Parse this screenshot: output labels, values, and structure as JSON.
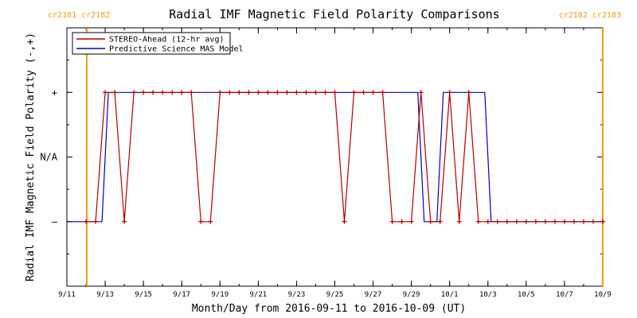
{
  "chart_data": {
    "type": "line",
    "title": "Radial IMF Magnetic Field Polarity Comparisons",
    "xlabel": "Month/Day from 2016-09-11 to 2016-10-09 (UT)",
    "ylabel": "Radial IMF Magnetic Field Polarity (-,+)",
    "xlim": [
      "2016-09-11",
      "2016-10-09"
    ],
    "x_ticks": [
      "9/11",
      "9/13",
      "9/15",
      "9/17",
      "9/19",
      "9/21",
      "9/23",
      "9/25",
      "9/27",
      "9/29",
      "10/1",
      "10/3",
      "10/5",
      "10/7",
      "10/9"
    ],
    "y_ticks": [
      {
        "value": 1,
        "label": "+"
      },
      {
        "value": 0,
        "label": "N/A"
      },
      {
        "value": -1,
        "label": "–"
      }
    ],
    "ylim": [
      -2,
      2
    ],
    "legend_position": "top-left",
    "carrington_markers": [
      {
        "date": "2016-09-12T01:00",
        "label": "cr2181 cr2182"
      },
      {
        "date": "2016-10-09T00:00",
        "label": "cr2182 cr2183"
      }
    ],
    "series": [
      {
        "name": "STEREO-Ahead (12-hr avg)",
        "color": "#b00000",
        "markers": true,
        "x": [
          "2016-09-12T00:00",
          "2016-09-12T12:00",
          "2016-09-13T00:00",
          "2016-09-13T12:00",
          "2016-09-14T00:00",
          "2016-09-14T12:00",
          "2016-09-15T00:00",
          "2016-09-15T12:00",
          "2016-09-16T00:00",
          "2016-09-16T12:00",
          "2016-09-17T00:00",
          "2016-09-17T12:00",
          "2016-09-18T00:00",
          "2016-09-18T12:00",
          "2016-09-19T00:00",
          "2016-09-19T12:00",
          "2016-09-20T00:00",
          "2016-09-20T12:00",
          "2016-09-21T00:00",
          "2016-09-21T12:00",
          "2016-09-22T00:00",
          "2016-09-22T12:00",
          "2016-09-23T00:00",
          "2016-09-23T12:00",
          "2016-09-24T00:00",
          "2016-09-24T12:00",
          "2016-09-25T00:00",
          "2016-09-25T12:00",
          "2016-09-26T00:00",
          "2016-09-26T12:00",
          "2016-09-27T00:00",
          "2016-09-27T12:00",
          "2016-09-28T00:00",
          "2016-09-28T12:00",
          "2016-09-29T00:00",
          "2016-09-29T12:00",
          "2016-09-30T00:00",
          "2016-09-30T12:00",
          "2016-10-01T00:00",
          "2016-10-01T12:00",
          "2016-10-02T00:00",
          "2016-10-02T12:00",
          "2016-10-03T00:00",
          "2016-10-03T12:00",
          "2016-10-04T00:00",
          "2016-10-04T12:00",
          "2016-10-05T00:00",
          "2016-10-05T12:00",
          "2016-10-06T00:00",
          "2016-10-06T12:00",
          "2016-10-07T00:00",
          "2016-10-07T12:00",
          "2016-10-08T00:00",
          "2016-10-08T12:00",
          "2016-10-09T00:00"
        ],
        "y": [
          -1,
          -1,
          1,
          1,
          -1,
          1,
          1,
          1,
          1,
          1,
          1,
          1,
          -1,
          -1,
          1,
          1,
          1,
          1,
          1,
          1,
          1,
          1,
          1,
          1,
          1,
          1,
          1,
          -1,
          1,
          1,
          1,
          1,
          -1,
          -1,
          -1,
          1,
          -1,
          -1,
          1,
          -1,
          1,
          -1,
          -1,
          -1,
          -1,
          -1,
          -1,
          -1,
          -1,
          -1,
          -1,
          -1,
          -1,
          -1,
          -1
        ]
      },
      {
        "name": "Predictive Science MAS Model",
        "color": "#0000c0",
        "markers": false,
        "x": [
          "2016-09-11T00:00",
          "2016-09-12T20:00",
          "2016-09-13T04:00",
          "2016-09-29T08:00",
          "2016-09-29T16:00",
          "2016-09-30T08:00",
          "2016-09-30T16:00",
          "2016-10-02T20:00",
          "2016-10-03T04:00",
          "2016-10-09T00:00"
        ],
        "y": [
          -1,
          -1,
          1,
          1,
          -1,
          -1,
          1,
          1,
          -1,
          -1
        ]
      }
    ]
  }
}
